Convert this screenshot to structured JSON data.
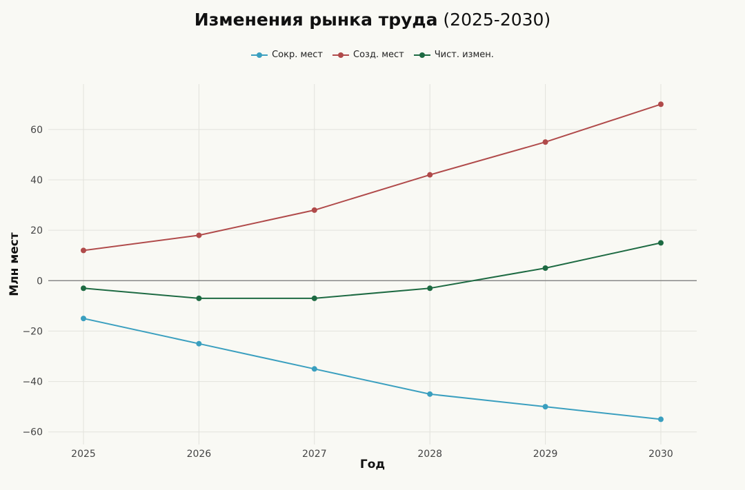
{
  "header": {
    "title_main": "Изменения рынка труда",
    "title_sub": "(2025-2030)"
  },
  "chart_data": {
    "type": "line",
    "title": "Изменения рынка труда (2025-2030)",
    "xlabel": "Год",
    "ylabel": "Млн мест",
    "x": [
      2025,
      2026,
      2027,
      2028,
      2029,
      2030
    ],
    "x_tick_labels": [
      "2025",
      "2026",
      "2027",
      "2028",
      "2029",
      "2030"
    ],
    "ylim": [
      -65,
      78
    ],
    "y_ticks": [
      -60,
      -40,
      -20,
      0,
      20,
      40,
      60
    ],
    "y_tick_labels": [
      "−60",
      "−40",
      "−20",
      "0",
      "20",
      "40",
      "60"
    ],
    "grid": true,
    "zero_line": true,
    "legend_position": "top-center",
    "series": [
      {
        "name": "Сокр. мест",
        "color": "#3a9fbf",
        "values": [
          -15,
          -25,
          -35,
          -45,
          -50,
          -55
        ]
      },
      {
        "name": "Созд. мест",
        "color": "#b04a4a",
        "values": [
          12,
          18,
          28,
          42,
          55,
          70
        ]
      },
      {
        "name": "Чист. измен.",
        "color": "#1d6a42",
        "values": [
          -3,
          -7,
          -7,
          -3,
          5,
          15
        ]
      }
    ]
  }
}
